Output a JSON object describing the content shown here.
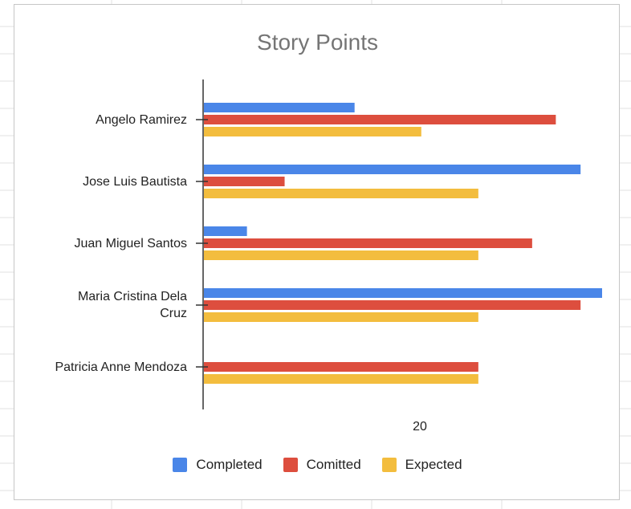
{
  "chart_data": {
    "type": "bar",
    "orientation": "horizontal",
    "title": "Story Points",
    "xlabel": "",
    "ylabel": "",
    "xlim": [
      0,
      37
    ],
    "x_tick_labels": [
      "20"
    ],
    "legend_position": "bottom",
    "categories": [
      "Angelo Ramirez",
      "Jose Luis Bautista",
      "Juan Miguel Santos",
      "Maria Cristina Dela Cruz",
      "Patricia Anne Mendoza"
    ],
    "series": [
      {
        "name": "Completed",
        "color": "#4a86e8",
        "values": [
          14,
          35,
          4,
          37,
          0
        ]
      },
      {
        "name": "Comitted",
        "color": "#dd4e3e",
        "values": [
          32.7,
          7.5,
          30.5,
          35,
          25.5
        ]
      },
      {
        "name": "Expected",
        "color": "#f3bd3e",
        "values": [
          20.2,
          25.5,
          25.5,
          25.5,
          25.5
        ]
      }
    ]
  }
}
